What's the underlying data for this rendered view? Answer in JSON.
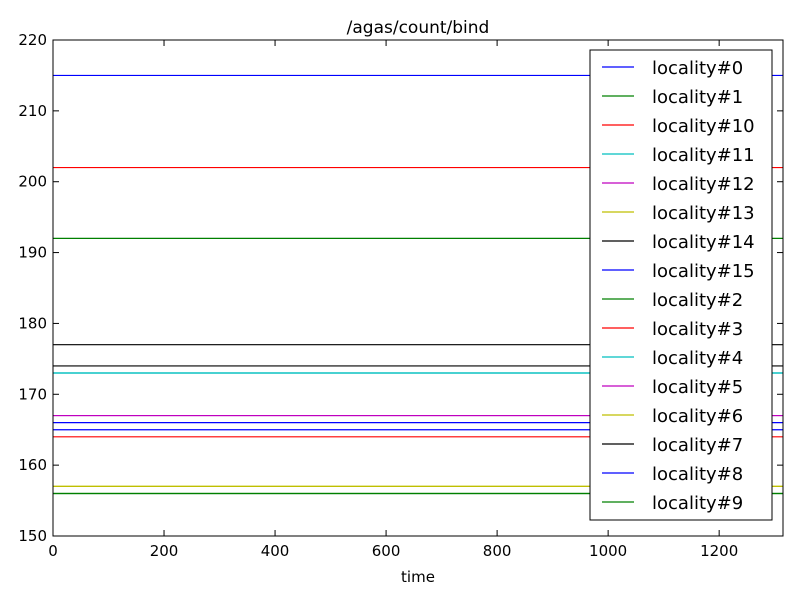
{
  "chart_data": {
    "type": "line",
    "title": "/agas/count/bind",
    "xlabel": "time",
    "ylabel": "",
    "xlim": [
      0,
      1315
    ],
    "ylim": [
      150,
      220
    ],
    "xticks": [
      0,
      200,
      400,
      600,
      800,
      1000,
      1200
    ],
    "yticks": [
      150,
      160,
      170,
      180,
      190,
      200,
      210,
      220
    ],
    "grid": false,
    "legend_position": "top-right",
    "series": [
      {
        "name": "locality#0",
        "color": "#0000ff",
        "x": [
          0,
          1315
        ],
        "y": [
          215,
          215
        ]
      },
      {
        "name": "locality#1",
        "color": "#008000",
        "x": [
          0,
          1315
        ],
        "y": [
          192,
          192
        ]
      },
      {
        "name": "locality#10",
        "color": "#ff0000",
        "x": [
          0,
          1315
        ],
        "y": [
          202,
          202
        ]
      },
      {
        "name": "locality#11",
        "color": "#00bfbf",
        "x": [
          0,
          1315
        ],
        "y": [
          173,
          173
        ]
      },
      {
        "name": "locality#12",
        "color": "#bf00bf",
        "x": [
          0,
          1315
        ],
        "y": [
          167,
          167
        ]
      },
      {
        "name": "locality#13",
        "color": "#bfbf00",
        "x": [
          0,
          1315
        ],
        "y": [
          157,
          157
        ]
      },
      {
        "name": "locality#14",
        "color": "#000000",
        "x": [
          0,
          1315
        ],
        "y": [
          174,
          174
        ]
      },
      {
        "name": "locality#15",
        "color": "#0000ff",
        "x": [
          0,
          1315
        ],
        "y": [
          166,
          166
        ]
      },
      {
        "name": "locality#2",
        "color": "#008000",
        "x": [
          0,
          1315
        ],
        "y": [
          156,
          156
        ]
      },
      {
        "name": "locality#3",
        "color": "#ff0000",
        "x": [
          0,
          1315
        ],
        "y": [
          164,
          164
        ]
      },
      {
        "name": "locality#4",
        "color": "#00bfbf",
        "x": [
          0,
          1315
        ],
        "y": [
          173,
          173
        ]
      },
      {
        "name": "locality#5",
        "color": "#bf00bf",
        "x": [
          0,
          1315
        ],
        "y": [
          167,
          167
        ]
      },
      {
        "name": "locality#6",
        "color": "#bfbf00",
        "x": [
          0,
          1315
        ],
        "y": [
          157,
          157
        ]
      },
      {
        "name": "locality#7",
        "color": "#000000",
        "x": [
          0,
          1315
        ],
        "y": [
          177,
          177
        ]
      },
      {
        "name": "locality#8",
        "color": "#0000ff",
        "x": [
          0,
          1315
        ],
        "y": [
          165,
          165
        ]
      },
      {
        "name": "locality#9",
        "color": "#008000",
        "x": [
          0,
          1315
        ],
        "y": [
          156,
          156
        ]
      }
    ]
  }
}
